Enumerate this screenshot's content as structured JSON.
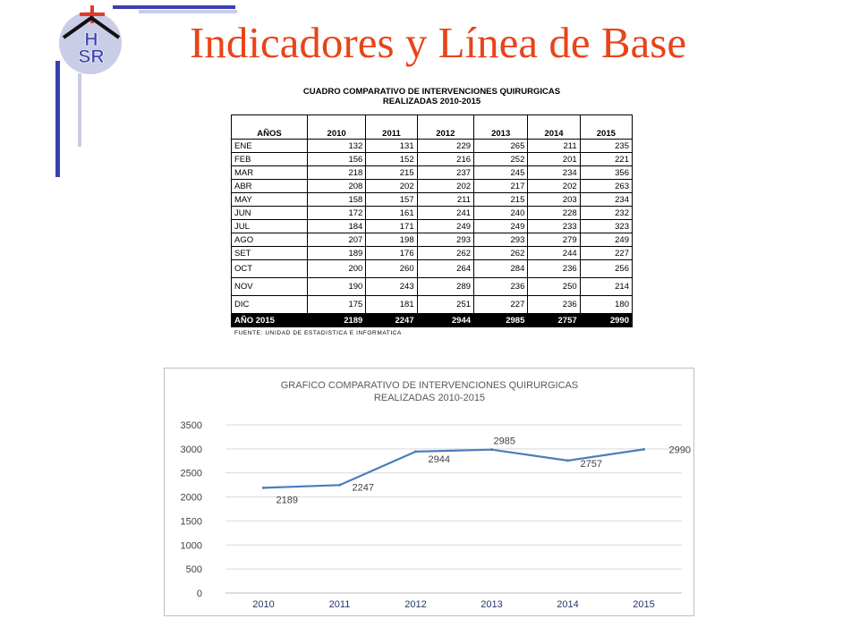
{
  "slide": {
    "title": "Indicadores y Línea de Base",
    "logo_text_top": "H",
    "logo_text_bottom": "SR"
  },
  "colors": {
    "title": "#e8441a",
    "frame_dark": "#3a3fb0",
    "frame_light": "#c8cce8",
    "series_line": "#4a7ebb",
    "logo_cross": "#e23a2a"
  },
  "table": {
    "heading_line1": "CUADRO COMPARATIVO DE INTERVENCIONES QUIRURGICAS",
    "heading_line2": "REALIZADAS 2010-2015",
    "columns": [
      "AÑOS",
      "2010",
      "2011",
      "2012",
      "2013",
      "2014",
      "2015"
    ],
    "rows": [
      [
        "ENE",
        "132",
        "131",
        "229",
        "265",
        "211",
        "235"
      ],
      [
        "FEB",
        "156",
        "152",
        "216",
        "252",
        "201",
        "221"
      ],
      [
        "MAR",
        "218",
        "215",
        "237",
        "245",
        "234",
        "356"
      ],
      [
        "ABR",
        "208",
        "202",
        "202",
        "217",
        "202",
        "263"
      ],
      [
        "MAY",
        "158",
        "157",
        "211",
        "215",
        "203",
        "234"
      ],
      [
        "JUN",
        "172",
        "161",
        "241",
        "240",
        "228",
        "232"
      ],
      [
        "JUL",
        "184",
        "171",
        "249",
        "249",
        "233",
        "323"
      ],
      [
        "AGO",
        "207",
        "198",
        "293",
        "293",
        "279",
        "249"
      ],
      [
        "SET",
        "189",
        "176",
        "262",
        "262",
        "244",
        "227"
      ],
      [
        "OCT",
        "200",
        "260",
        "264",
        "284",
        "236",
        "256"
      ],
      [
        "NOV",
        "190",
        "243",
        "289",
        "236",
        "250",
        "214"
      ],
      [
        "DIC",
        "175",
        "181",
        "251",
        "227",
        "236",
        "180"
      ]
    ],
    "total_row": [
      "AÑO 2015",
      "2189",
      "2247",
      "2944",
      "2985",
      "2757",
      "2990"
    ],
    "source": "FUENTE: UNIDAD DE ESTADISTICA E INFORMATICA"
  },
  "chart_data": {
    "type": "line",
    "title": "GRAFICO COMPARATIVO DE INTERVENCIONES QUIRURGICAS",
    "subtitle": "REALIZADAS 2010-2015",
    "categories": [
      "2010",
      "2011",
      "2012",
      "2013",
      "2014",
      "2015"
    ],
    "series": [
      {
        "values": [
          2189,
          2247,
          2944,
          2985,
          2757,
          2990
        ]
      }
    ],
    "data_labels": [
      "2189",
      "2247",
      "2944",
      "2985",
      "2757",
      "2990"
    ],
    "ylim": [
      0,
      3500
    ],
    "yticks": [
      0,
      500,
      1000,
      1500,
      2000,
      2500,
      3000,
      3500
    ],
    "ytick_labels": [
      "0",
      "500",
      "1000",
      "1500",
      "2000",
      "2500",
      "3000",
      "3500"
    ],
    "grid": true,
    "legend": "none",
    "xlabel": "",
    "ylabel": ""
  }
}
